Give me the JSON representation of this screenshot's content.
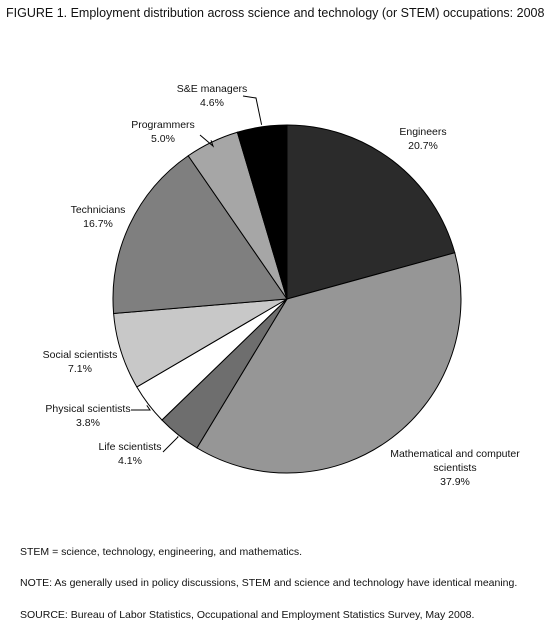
{
  "figure": {
    "title": "FIGURE 1.  Employment distribution across science and technology (or STEM) occupations: 2008"
  },
  "chart_data": {
    "type": "pie",
    "slices": [
      {
        "name": "Engineers",
        "value": 20.7,
        "label": "20.7%",
        "color": "#2b2b2b"
      },
      {
        "name": "Mathematical and computer scientists",
        "label_line1": "Mathematical and computer",
        "label_line2": "scientists",
        "value": 37.9,
        "label": "37.9%",
        "color": "#969696"
      },
      {
        "name": "Life scientists",
        "value": 4.1,
        "label": "4.1%",
        "color": "#6e6e6e"
      },
      {
        "name": "Physical scientists",
        "value": 3.8,
        "label": "3.8%",
        "color": "#ffffff"
      },
      {
        "name": "Social scientists",
        "value": 7.1,
        "label": "7.1%",
        "color": "#c8c8c8"
      },
      {
        "name": "Technicians",
        "value": 16.7,
        "label": "16.7%",
        "color": "#7f7f7f"
      },
      {
        "name": "Programmers",
        "value": 5.0,
        "label": "5.0%",
        "color": "#a6a6a6"
      },
      {
        "name": "S&E managers",
        "value": 4.6,
        "label": "4.6%",
        "color": "#000000"
      }
    ]
  },
  "notes": {
    "stem": "STEM = science, technology, engineering, and mathematics.",
    "note": "NOTE:  As generally used in policy discussions, STEM and science and technology have identical meaning.",
    "source": "SOURCE:  Bureau of Labor Statistics, Occupational and Employment Statistics Survey, May 2008."
  }
}
